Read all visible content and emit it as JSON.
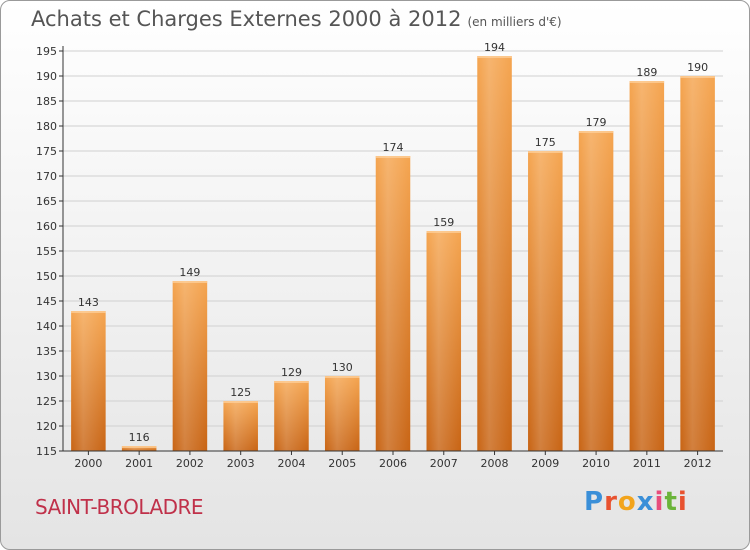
{
  "title": "Achats et Charges Externes 2000 à 2012",
  "unit_note": "(en milliers d'€)",
  "place": "SAINT-BROLADRE",
  "logo": {
    "letters": [
      "P",
      "r",
      "o",
      "x",
      "i",
      "t",
      "i"
    ],
    "colors": [
      "#3a8fd8",
      "#e8522f",
      "#f2a41c",
      "#3a8fd8",
      "#e84d7b",
      "#6bb43a",
      "#e8522f"
    ]
  },
  "colors": {
    "bar_top": "#f5a550",
    "bar_bottom": "#c86414",
    "axis": "#333333",
    "grid": "#d0d0d0",
    "text": "#333333"
  },
  "chart_data": {
    "type": "bar",
    "categories": [
      "2000",
      "2001",
      "2002",
      "2003",
      "2004",
      "2005",
      "2006",
      "2007",
      "2008",
      "2009",
      "2010",
      "2011",
      "2012"
    ],
    "values": [
      143,
      116,
      149,
      125,
      129,
      130,
      174,
      159,
      194,
      175,
      179,
      189,
      190
    ],
    "data_labels": [
      "143",
      "116",
      "149",
      "125",
      "129",
      "130",
      "174",
      "159",
      "194",
      "175",
      "179",
      "189",
      "190"
    ],
    "ylim": [
      115,
      195
    ],
    "yticks": [
      115,
      120,
      125,
      130,
      135,
      140,
      145,
      150,
      155,
      160,
      165,
      170,
      175,
      180,
      185,
      190,
      195
    ],
    "ytick_labels": [
      "115",
      "120",
      "125",
      "130",
      "135",
      "140",
      "145",
      "150",
      "155",
      "160",
      "165",
      "170",
      "175",
      "180",
      "185",
      "190",
      "195"
    ],
    "grid": true,
    "xlabel": "",
    "ylabel": ""
  }
}
